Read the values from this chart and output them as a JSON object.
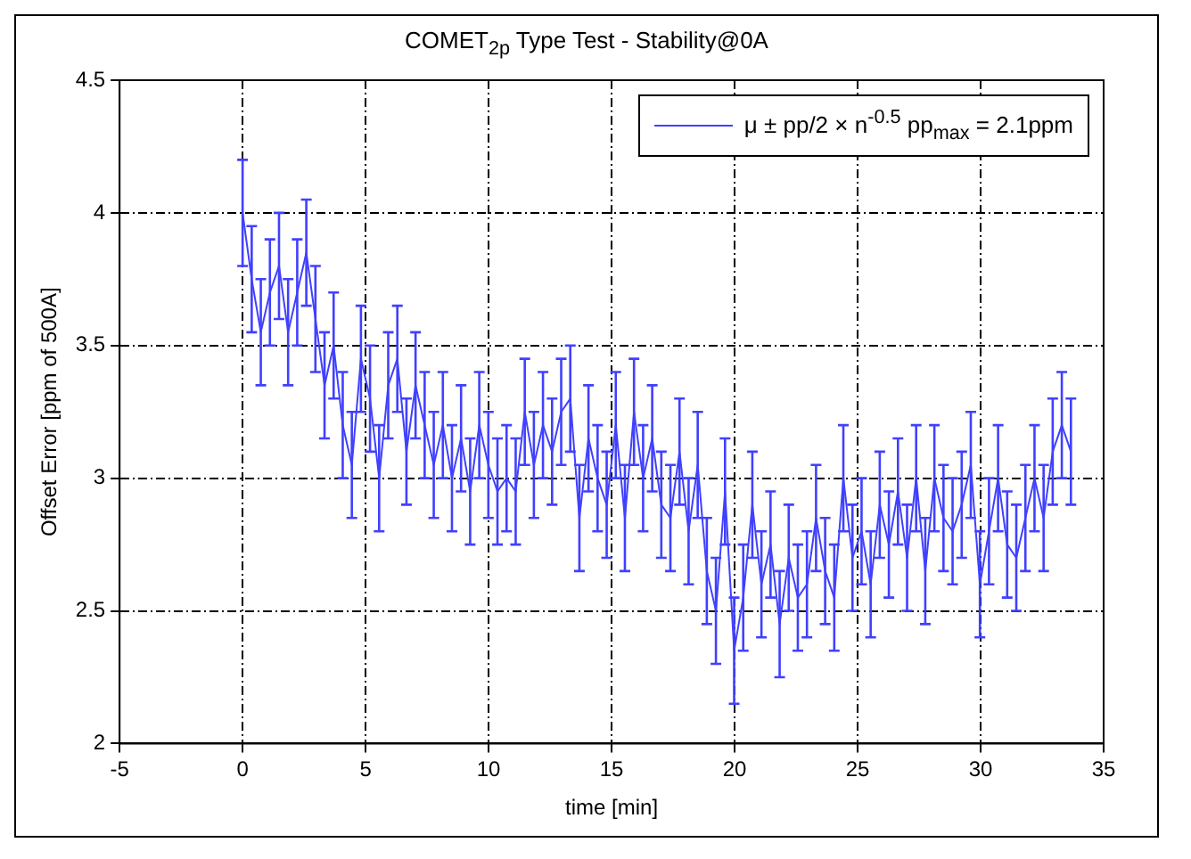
{
  "chart_data": {
    "type": "line",
    "title": "COMET$_{2p}$ Type Test - Stability@0A",
    "xlabel": "time [min]",
    "ylabel": "Offset Error [ppm of 500A]",
    "x": [
      0,
      0.37,
      0.74,
      1.11,
      1.48,
      1.85,
      2.22,
      2.59,
      2.96,
      3.33,
      3.7,
      4.07,
      4.44,
      4.81,
      5.18,
      5.55,
      5.92,
      6.29,
      6.66,
      7.03,
      7.4,
      7.77,
      8.14,
      8.51,
      8.88,
      9.25,
      9.62,
      9.99,
      10.36,
      10.73,
      11.1,
      11.47,
      11.84,
      12.21,
      12.58,
      12.95,
      13.32,
      13.69,
      14.06,
      14.43,
      14.8,
      15.17,
      15.54,
      15.91,
      16.28,
      16.65,
      17.02,
      17.39,
      17.76,
      18.13,
      18.5,
      18.87,
      19.24,
      19.61,
      19.98,
      20.35,
      20.72,
      21.09,
      21.46,
      21.83,
      22.2,
      22.57,
      22.94,
      23.31,
      23.68,
      24.05,
      24.42,
      24.79,
      25.16,
      25.53,
      25.9,
      26.27,
      26.64,
      27.01,
      27.38,
      27.75,
      28.12,
      28.49,
      28.86,
      29.23,
      29.6,
      29.97,
      30.34,
      30.71,
      31.08,
      31.45,
      31.82,
      32.19,
      32.56,
      32.93,
      33.3,
      33.67
    ],
    "series": [
      {
        "name": "μ ± pp/2 × n$^{-0.5}$ pp$_{max}$ = 2.1ppm",
        "color": "#4040ff",
        "values": [
          4.0,
          3.75,
          3.55,
          3.7,
          3.8,
          3.55,
          3.7,
          3.85,
          3.6,
          3.35,
          3.5,
          3.2,
          3.05,
          3.45,
          3.3,
          3.0,
          3.35,
          3.45,
          3.1,
          3.35,
          3.2,
          3.05,
          3.2,
          3.0,
          3.15,
          2.95,
          3.2,
          3.05,
          2.95,
          3.0,
          2.95,
          3.25,
          3.05,
          3.2,
          3.1,
          3.25,
          3.3,
          2.85,
          3.15,
          3.0,
          2.9,
          3.2,
          2.85,
          3.25,
          3.0,
          3.15,
          2.9,
          2.85,
          3.1,
          2.8,
          3.05,
          2.65,
          2.5,
          2.95,
          2.35,
          2.55,
          2.9,
          2.6,
          2.75,
          2.45,
          2.7,
          2.55,
          2.6,
          2.85,
          2.65,
          2.55,
          3.0,
          2.7,
          2.8,
          2.6,
          2.9,
          2.75,
          2.95,
          2.7,
          3.0,
          2.65,
          3.0,
          2.85,
          2.8,
          2.9,
          3.05,
          2.6,
          2.8,
          3.0,
          2.75,
          2.7,
          2.85,
          3.0,
          2.85,
          3.1,
          3.2,
          3.1
        ],
        "errors": [
          0.2,
          0.2,
          0.2,
          0.2,
          0.2,
          0.2,
          0.2,
          0.2,
          0.2,
          0.2,
          0.2,
          0.2,
          0.2,
          0.2,
          0.2,
          0.2,
          0.2,
          0.2,
          0.2,
          0.2,
          0.2,
          0.2,
          0.2,
          0.2,
          0.2,
          0.2,
          0.2,
          0.2,
          0.2,
          0.2,
          0.2,
          0.2,
          0.2,
          0.2,
          0.2,
          0.2,
          0.2,
          0.2,
          0.2,
          0.2,
          0.2,
          0.2,
          0.2,
          0.2,
          0.2,
          0.2,
          0.2,
          0.2,
          0.2,
          0.2,
          0.2,
          0.2,
          0.2,
          0.2,
          0.2,
          0.2,
          0.2,
          0.2,
          0.2,
          0.2,
          0.2,
          0.2,
          0.2,
          0.2,
          0.2,
          0.2,
          0.2,
          0.2,
          0.2,
          0.2,
          0.2,
          0.2,
          0.2,
          0.2,
          0.2,
          0.2,
          0.2,
          0.2,
          0.2,
          0.2,
          0.2,
          0.2,
          0.2,
          0.2,
          0.2,
          0.2,
          0.2,
          0.2,
          0.2,
          0.2,
          0.2,
          0.2
        ]
      }
    ],
    "xlim": [
      -5,
      35
    ],
    "xticks": [
      -5,
      0,
      5,
      10,
      15,
      20,
      25,
      30,
      35
    ],
    "ylim": [
      2,
      4.5
    ],
    "yticks": [
      2,
      2.5,
      3,
      3.5,
      4,
      4.5
    ],
    "grid": true,
    "legend": "top right",
    "marker": "none",
    "line_style": "solid"
  }
}
